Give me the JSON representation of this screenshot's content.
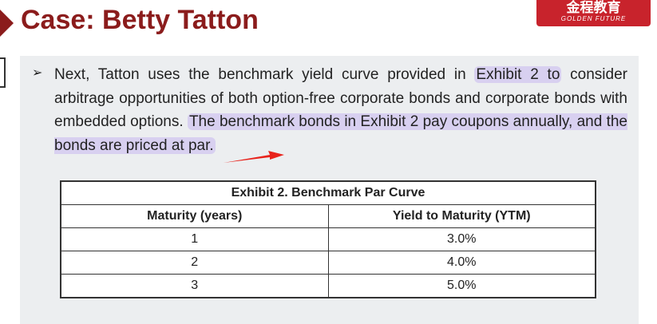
{
  "header": {
    "title": "Case: Betty Tatton",
    "logo": {
      "main": "金程教育",
      "sub": "GOLDEN FUTURE"
    }
  },
  "paragraph": {
    "parts": [
      {
        "text": "Next, Tatton uses the benchmark yield curve provided in "
      },
      {
        "text": "Exhibit 2 to",
        "highlight": true
      },
      {
        "text": " consider arbitrage opportunities of both option-free corporate bonds and corporate bonds with embedded options. "
      },
      {
        "text": "The benchmark bonds in Exhibit 2 pay coupons annually, and the bonds are priced at par.",
        "highlight": true
      }
    ]
  },
  "table": {
    "caption": "Exhibit 2. Benchmark Par Curve",
    "columns": [
      "Maturity (years)",
      "Yield to Maturity (YTM)"
    ],
    "rows": [
      [
        "1",
        "3.0%"
      ],
      [
        "2",
        "4.0%"
      ],
      [
        "3",
        "5.0%"
      ]
    ]
  }
}
